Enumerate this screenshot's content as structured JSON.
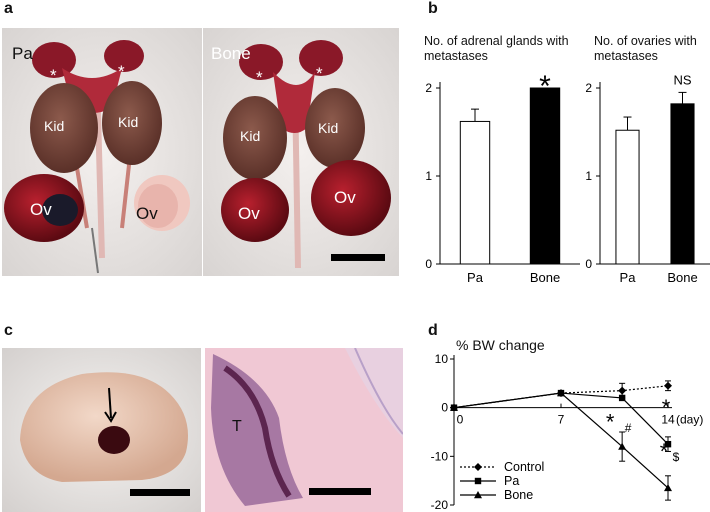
{
  "panels": {
    "a": {
      "letter": "a",
      "left_photo": {
        "label": "Pa",
        "organs": [
          "*",
          "*",
          "Kid",
          "Kid",
          "Ov",
          "Ov"
        ]
      },
      "right_photo": {
        "label": "Bone",
        "organs": [
          "*",
          "*",
          "Kid",
          "Kid",
          "Ov",
          "Ov"
        ]
      }
    },
    "b": {
      "letter": "b"
    },
    "c": {
      "letter": "c",
      "histology_label": "T"
    },
    "d": {
      "letter": "d"
    }
  },
  "colors": {
    "bar_pa": "#ffffff",
    "bar_bone": "#000000",
    "axis": "#000000",
    "tissue_bg": "#f0c8d4",
    "tumor": "#6a1e4c"
  },
  "chart_data": [
    {
      "type": "bar",
      "title": "No. of adrenal glands with metastases",
      "categories": [
        "Pa",
        "Bone"
      ],
      "values": [
        1.62,
        2.0
      ],
      "errors": [
        0.14,
        0.0
      ],
      "ylim": [
        0,
        2
      ],
      "yticks": [
        0,
        1,
        2
      ],
      "annotations": [
        {
          "category": "Bone",
          "text": "*"
        }
      ]
    },
    {
      "type": "bar",
      "title": "No. of ovaries with metastases",
      "categories": [
        "Pa",
        "Bone"
      ],
      "values": [
        1.52,
        1.82
      ],
      "errors": [
        0.15,
        0.13
      ],
      "ylim": [
        0,
        2
      ],
      "yticks": [
        0,
        1,
        2
      ],
      "annotations": [
        {
          "category": "Bone",
          "text": "NS"
        }
      ]
    },
    {
      "type": "line",
      "title": "% BW change",
      "xlabel_unit": "(day)",
      "xticks": [
        0,
        7,
        14
      ],
      "ylim": [
        -20,
        10
      ],
      "yticks": [
        10,
        0,
        -10,
        -20
      ],
      "series": [
        {
          "name": "Control",
          "marker": "diamond",
          "dash": true,
          "x": [
            0,
            7,
            11,
            14
          ],
          "y": [
            0,
            3,
            3.5,
            4.5
          ],
          "err": [
            0,
            0,
            1.5,
            1
          ]
        },
        {
          "name": "Pa",
          "marker": "square",
          "dash": false,
          "x": [
            0,
            7,
            11,
            14
          ],
          "y": [
            0,
            3,
            2,
            -7.5
          ],
          "err": [
            0,
            0,
            0,
            1.5
          ]
        },
        {
          "name": "Bone",
          "marker": "triangle",
          "dash": false,
          "x": [
            0,
            7,
            11,
            14
          ],
          "y": [
            0,
            3,
            -8,
            -16.5
          ],
          "err": [
            0,
            0,
            3,
            2.5
          ]
        }
      ],
      "annotations": [
        "*",
        "#",
        "*",
        "*",
        "$"
      ]
    }
  ]
}
